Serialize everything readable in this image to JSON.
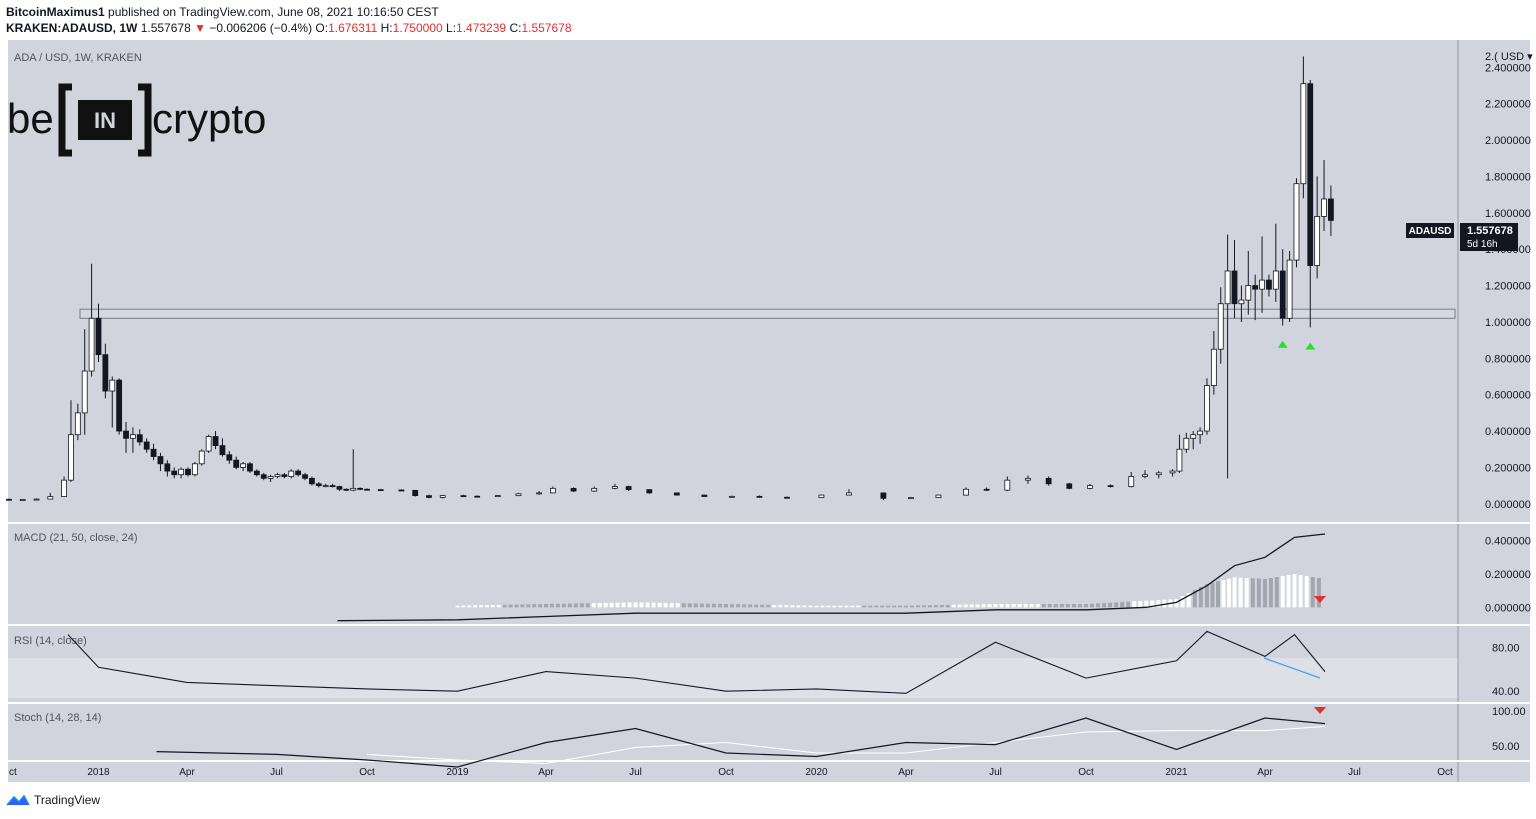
{
  "header": {
    "author": "BitcoinMaximus1",
    "published": "published on TradingView.com, June 08, 2021 10:16:50 CEST",
    "symbol_line": "KRAKEN:ADAUSD, 1W",
    "last": "1.557678",
    "change": "−0.006206 (−0.4%)",
    "o_label": "O:",
    "o": "1.676311",
    "h_label": "H:",
    "h": "1.750000",
    "l_label": "L:",
    "l": "1.473239",
    "c_label": "C:",
    "c": "1.557678"
  },
  "main_pane": {
    "title": "ADA / USD, 1W, KRAKEN",
    "logo_text_left": "be",
    "logo_text_mid": "IN",
    "logo_text_right": "crypto",
    "price_axis_labels": [
      "2.400000",
      "2.200000",
      "2.000000",
      "1.800000",
      "1.600000",
      "1.400000",
      "1.200000",
      "1.000000",
      "0.800000",
      "0.600000",
      "0.400000",
      "0.200000",
      "0.000000"
    ],
    "axis_top_label": "2.( USD ▾",
    "price_tag": "ADAUSD",
    "price_value": "1.557678",
    "price_countdown": "5d 16h"
  },
  "macd_pane": {
    "title": "MACD (21, 50, close, 24)",
    "axis_labels": [
      "0.400000",
      "0.200000",
      "0.000000"
    ]
  },
  "rsi_pane": {
    "title": "RSI (14, close)",
    "axis_labels": [
      "80.00",
      "40.00"
    ]
  },
  "stoch_pane": {
    "title": "Stoch (14, 28, 14)",
    "axis_labels": [
      "100.00",
      "50.00"
    ]
  },
  "time_axis": [
    "ct",
    "2018",
    "Apr",
    "Jul",
    "Oct",
    "2019",
    "Apr",
    "Jul",
    "Oct",
    "2020",
    "Apr",
    "Jul",
    "Oct",
    "2021",
    "Apr",
    "Jul",
    "Oct"
  ],
  "footer": {
    "brand": "TradingView"
  },
  "colors": {
    "background": "#d1d4dc",
    "up": "#ffffff",
    "down": "#131722",
    "accent_green": "#22e22e",
    "accent_red": "#e0302f",
    "trendline": "#4aa3df"
  },
  "chart_data": [
    {
      "type": "candlestick",
      "title": "ADA / USD, 1W, KRAKEN",
      "x_start": "2017-10",
      "x_end": "2021-10",
      "ylim": [
        -0.1,
        2.55
      ],
      "support_zone": [
        1.02,
        1.07
      ],
      "markers": [
        {
          "x": "2021-04-19",
          "y": 0.88,
          "type": "green-up-arrow"
        },
        {
          "x": "2021-05-17",
          "y": 0.87,
          "type": "green-up-arrow"
        }
      ],
      "candles": [
        [
          "2017-10-02",
          0.025,
          0.028,
          0.02,
          0.023
        ],
        [
          "2017-10-16",
          0.023,
          0.026,
          0.02,
          0.024
        ],
        [
          "2017-10-30",
          0.024,
          0.03,
          0.021,
          0.026
        ],
        [
          "2017-11-13",
          0.026,
          0.06,
          0.025,
          0.04
        ],
        [
          "2017-11-27",
          0.04,
          0.15,
          0.038,
          0.13
        ],
        [
          "2017-12-04",
          0.13,
          0.57,
          0.12,
          0.38
        ],
        [
          "2017-12-11",
          0.38,
          0.55,
          0.35,
          0.5
        ],
        [
          "2017-12-18",
          0.5,
          0.96,
          0.38,
          0.73
        ],
        [
          "2017-12-25",
          0.73,
          1.32,
          0.7,
          1.02
        ],
        [
          "2018-01-01",
          1.02,
          1.1,
          0.78,
          0.82
        ],
        [
          "2018-01-08",
          0.82,
          0.88,
          0.58,
          0.62
        ],
        [
          "2018-01-15",
          0.62,
          0.7,
          0.42,
          0.68
        ],
        [
          "2018-01-22",
          0.68,
          0.69,
          0.38,
          0.4
        ],
        [
          "2018-01-29",
          0.4,
          0.45,
          0.28,
          0.36
        ],
        [
          "2018-02-05",
          0.36,
          0.42,
          0.28,
          0.38
        ],
        [
          "2018-02-12",
          0.38,
          0.41,
          0.32,
          0.34
        ],
        [
          "2018-02-19",
          0.34,
          0.36,
          0.28,
          0.3
        ],
        [
          "2018-02-26",
          0.3,
          0.33,
          0.24,
          0.26
        ],
        [
          "2018-03-05",
          0.26,
          0.28,
          0.18,
          0.22
        ],
        [
          "2018-03-12",
          0.22,
          0.24,
          0.15,
          0.18
        ],
        [
          "2018-03-19",
          0.18,
          0.2,
          0.14,
          0.16
        ],
        [
          "2018-03-26",
          0.16,
          0.2,
          0.14,
          0.19
        ],
        [
          "2018-04-02",
          0.19,
          0.2,
          0.15,
          0.16
        ],
        [
          "2018-04-09",
          0.16,
          0.23,
          0.15,
          0.22
        ],
        [
          "2018-04-16",
          0.22,
          0.3,
          0.21,
          0.29
        ],
        [
          "2018-04-23",
          0.29,
          0.38,
          0.28,
          0.37
        ],
        [
          "2018-04-30",
          0.37,
          0.4,
          0.3,
          0.32
        ],
        [
          "2018-05-07",
          0.32,
          0.36,
          0.26,
          0.27
        ],
        [
          "2018-05-14",
          0.27,
          0.29,
          0.22,
          0.24
        ],
        [
          "2018-05-21",
          0.24,
          0.26,
          0.19,
          0.2
        ],
        [
          "2018-05-28",
          0.2,
          0.23,
          0.18,
          0.22
        ],
        [
          "2018-06-04",
          0.22,
          0.23,
          0.17,
          0.18
        ],
        [
          "2018-06-11",
          0.18,
          0.19,
          0.15,
          0.16
        ],
        [
          "2018-06-18",
          0.16,
          0.17,
          0.13,
          0.14
        ],
        [
          "2018-06-25",
          0.14,
          0.16,
          0.12,
          0.15
        ],
        [
          "2018-07-02",
          0.15,
          0.17,
          0.14,
          0.16
        ],
        [
          "2018-07-09",
          0.16,
          0.17,
          0.14,
          0.15
        ],
        [
          "2018-07-16",
          0.15,
          0.19,
          0.14,
          0.18
        ],
        [
          "2018-07-23",
          0.18,
          0.19,
          0.15,
          0.16
        ],
        [
          "2018-07-30",
          0.16,
          0.17,
          0.13,
          0.14
        ],
        [
          "2018-08-06",
          0.14,
          0.15,
          0.1,
          0.11
        ],
        [
          "2018-08-13",
          0.11,
          0.12,
          0.09,
          0.1
        ],
        [
          "2018-08-20",
          0.1,
          0.11,
          0.09,
          0.1
        ],
        [
          "2018-08-27",
          0.1,
          0.11,
          0.09,
          0.095
        ],
        [
          "2018-09-03",
          0.095,
          0.1,
          0.07,
          0.08
        ],
        [
          "2018-09-10",
          0.08,
          0.085,
          0.07,
          0.075
        ],
        [
          "2018-09-17",
          0.075,
          0.3,
          0.07,
          0.085
        ],
        [
          "2018-09-24",
          0.085,
          0.09,
          0.075,
          0.08
        ],
        [
          "2018-10-01",
          0.08,
          0.085,
          0.075,
          0.078
        ],
        [
          "2018-10-15",
          0.078,
          0.082,
          0.072,
          0.076
        ],
        [
          "2018-11-05",
          0.076,
          0.08,
          0.07,
          0.074
        ],
        [
          "2018-11-19",
          0.074,
          0.076,
          0.04,
          0.045
        ],
        [
          "2018-12-03",
          0.045,
          0.05,
          0.03,
          0.035
        ],
        [
          "2018-12-17",
          0.035,
          0.048,
          0.03,
          0.045
        ],
        [
          "2019-01-07",
          0.045,
          0.05,
          0.04,
          0.042
        ],
        [
          "2019-01-21",
          0.042,
          0.046,
          0.038,
          0.04
        ],
        [
          "2019-02-11",
          0.04,
          0.048,
          0.038,
          0.045
        ],
        [
          "2019-03-04",
          0.045,
          0.06,
          0.042,
          0.055
        ],
        [
          "2019-03-25",
          0.055,
          0.07,
          0.05,
          0.06
        ],
        [
          "2019-04-08",
          0.06,
          0.095,
          0.058,
          0.085
        ],
        [
          "2019-04-29",
          0.085,
          0.09,
          0.065,
          0.07
        ],
        [
          "2019-05-20",
          0.07,
          0.095,
          0.065,
          0.085
        ],
        [
          "2019-06-10",
          0.085,
          0.11,
          0.08,
          0.095
        ],
        [
          "2019-06-24",
          0.095,
          0.1,
          0.07,
          0.078
        ],
        [
          "2019-07-15",
          0.078,
          0.08,
          0.055,
          0.06
        ],
        [
          "2019-08-12",
          0.06,
          0.062,
          0.045,
          0.048
        ],
        [
          "2019-09-09",
          0.048,
          0.05,
          0.038,
          0.04
        ],
        [
          "2019-10-07",
          0.04,
          0.045,
          0.036,
          0.041
        ],
        [
          "2019-11-04",
          0.041,
          0.046,
          0.034,
          0.036
        ],
        [
          "2019-12-02",
          0.036,
          0.04,
          0.032,
          0.034
        ],
        [
          "2020-01-06",
          0.034,
          0.05,
          0.033,
          0.048
        ],
        [
          "2020-02-03",
          0.048,
          0.08,
          0.046,
          0.06
        ],
        [
          "2020-03-09",
          0.06,
          0.062,
          0.02,
          0.03
        ],
        [
          "2020-04-06",
          0.03,
          0.036,
          0.028,
          0.034
        ],
        [
          "2020-05-04",
          0.034,
          0.05,
          0.032,
          0.048
        ],
        [
          "2020-06-01",
          0.048,
          0.09,
          0.045,
          0.08
        ],
        [
          "2020-06-22",
          0.08,
          0.09,
          0.07,
          0.075
        ],
        [
          "2020-07-13",
          0.075,
          0.15,
          0.07,
          0.13
        ],
        [
          "2020-08-03",
          0.13,
          0.155,
          0.11,
          0.14
        ],
        [
          "2020-08-24",
          0.14,
          0.15,
          0.1,
          0.11
        ],
        [
          "2020-09-14",
          0.11,
          0.115,
          0.08,
          0.085
        ],
        [
          "2020-10-05",
          0.085,
          0.11,
          0.08,
          0.1
        ],
        [
          "2020-10-26",
          0.1,
          0.106,
          0.09,
          0.095
        ],
        [
          "2020-11-16",
          0.095,
          0.175,
          0.09,
          0.15
        ],
        [
          "2020-11-30",
          0.15,
          0.185,
          0.14,
          0.16
        ],
        [
          "2020-12-14",
          0.16,
          0.18,
          0.14,
          0.17
        ],
        [
          "2020-12-28",
          0.17,
          0.19,
          0.15,
          0.18
        ],
        [
          "2021-01-04",
          0.18,
          0.38,
          0.17,
          0.3
        ],
        [
          "2021-01-11",
          0.3,
          0.39,
          0.28,
          0.36
        ],
        [
          "2021-01-18",
          0.36,
          0.4,
          0.3,
          0.38
        ],
        [
          "2021-01-25",
          0.38,
          0.42,
          0.33,
          0.4
        ],
        [
          "2021-02-01",
          0.4,
          0.69,
          0.38,
          0.65
        ],
        [
          "2021-02-08",
          0.65,
          0.95,
          0.6,
          0.85
        ],
        [
          "2021-02-15",
          0.85,
          1.19,
          0.77,
          1.1
        ],
        [
          "2021-02-22",
          1.1,
          1.48,
          0.14,
          1.28
        ],
        [
          "2021-03-01",
          1.28,
          1.45,
          1.02,
          1.1
        ],
        [
          "2021-03-08",
          1.1,
          1.2,
          1.0,
          1.12
        ],
        [
          "2021-03-15",
          1.12,
          1.39,
          1.04,
          1.2
        ],
        [
          "2021-03-22",
          1.2,
          1.26,
          1.01,
          1.18
        ],
        [
          "2021-03-29",
          1.18,
          1.47,
          1.05,
          1.23
        ],
        [
          "2021-04-05",
          1.23,
          1.26,
          1.14,
          1.18
        ],
        [
          "2021-04-12",
          1.18,
          1.54,
          1.11,
          1.28
        ],
        [
          "2021-04-19",
          1.28,
          1.4,
          0.98,
          1.02
        ],
        [
          "2021-04-26",
          1.02,
          1.39,
          1.0,
          1.34
        ],
        [
          "2021-05-03",
          1.34,
          1.79,
          1.3,
          1.76
        ],
        [
          "2021-05-10",
          1.76,
          2.46,
          1.68,
          2.31
        ],
        [
          "2021-05-17",
          2.31,
          2.33,
          0.97,
          1.31
        ],
        [
          "2021-05-24",
          1.31,
          1.8,
          1.24,
          1.58
        ],
        [
          "2021-05-31",
          1.58,
          1.89,
          1.5,
          1.676
        ],
        [
          "2021-06-07",
          1.676,
          1.75,
          1.473,
          1.558
        ]
      ]
    },
    {
      "type": "line",
      "title": "MACD (21, 50, close, 24)",
      "ylim": [
        -0.1,
        0.5
      ],
      "series": [
        {
          "x": [
            "2018-09",
            "2019-01",
            "2019-04",
            "2019-07",
            "2019-10",
            "2020-01",
            "2020-04",
            "2020-07",
            "2020-10",
            "2020-12",
            "2021-01",
            "2021-02",
            "2021-03",
            "2021-04",
            "2021-05",
            "2021-06"
          ],
          "values": [
            -0.08,
            -0.075,
            -0.055,
            -0.035,
            -0.035,
            -0.035,
            -0.035,
            -0.015,
            -0.015,
            0.0,
            0.03,
            0.13,
            0.25,
            0.3,
            0.42,
            0.44
          ]
        }
      ],
      "histogram": {
        "x": [
          "2019-01",
          "2019-04",
          "2019-07",
          "2019-10",
          "2020-01",
          "2020-04",
          "2020-07",
          "2020-10",
          "2021-01",
          "2021-02",
          "2021-03",
          "2021-04",
          "2021-05",
          "2021-06"
        ],
        "values": [
          0.01,
          0.02,
          0.03,
          0.02,
          0.01,
          0.01,
          0.02,
          0.02,
          0.05,
          0.14,
          0.18,
          0.17,
          0.2,
          0.17
        ]
      }
    },
    {
      "type": "line",
      "title": "RSI (14, close)",
      "ylim": [
        30,
        100
      ],
      "series": [
        {
          "x": [
            "2017-12",
            "2018-01",
            "2018-04",
            "2018-07",
            "2018-10",
            "2019-01",
            "2019-04",
            "2019-07",
            "2019-10",
            "2020-01",
            "2020-04",
            "2020-07",
            "2020-10",
            "2021-01",
            "2021-02",
            "2021-04",
            "2021-05",
            "2021-06"
          ],
          "values": [
            92,
            62,
            48,
            45,
            42,
            40,
            58,
            52,
            40,
            42,
            38,
            85,
            52,
            68,
            95,
            72,
            92,
            58
          ]
        }
      ]
    },
    {
      "type": "line",
      "title": "Stoch (14, 28, 14)",
      "ylim": [
        30,
        110
      ],
      "series": [
        {
          "x": [
            "2018-03",
            "2018-07",
            "2018-10",
            "2019-01",
            "2019-04",
            "2019-07",
            "2019-10",
            "2020-01",
            "2020-04",
            "2020-07",
            "2020-10",
            "2021-01",
            "2021-04",
            "2021-06"
          ],
          "values": [
            42,
            38,
            30,
            20,
            55,
            75,
            40,
            35,
            55,
            52,
            90,
            45,
            90,
            82
          ]
        },
        {
          "x": [
            "2018-10",
            "2019-01",
            "2019-04",
            "2019-07",
            "2019-10",
            "2020-01",
            "2020-04",
            "2020-07",
            "2020-10",
            "2021-01",
            "2021-04",
            "2021-06"
          ],
          "values": [
            38,
            30,
            25,
            48,
            55,
            40,
            40,
            55,
            70,
            72,
            72,
            78
          ]
        }
      ]
    }
  ]
}
